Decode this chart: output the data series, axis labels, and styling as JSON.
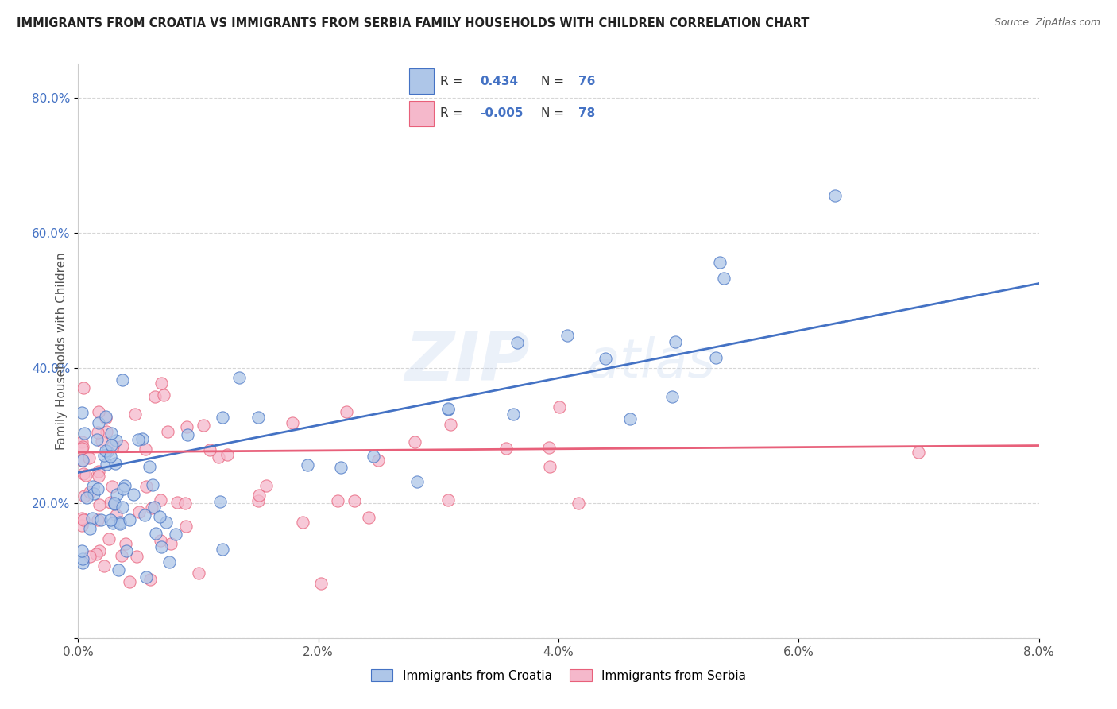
{
  "title": "IMMIGRANTS FROM CROATIA VS IMMIGRANTS FROM SERBIA FAMILY HOUSEHOLDS WITH CHILDREN CORRELATION CHART",
  "source": "Source: ZipAtlas.com",
  "ylabel": "Family Households with Children",
  "xlim": [
    0.0,
    0.08
  ],
  "ylim": [
    0.0,
    0.85
  ],
  "x_ticks": [
    0.0,
    0.02,
    0.04,
    0.06,
    0.08
  ],
  "x_tick_labels": [
    "0.0%",
    "2.0%",
    "4.0%",
    "6.0%",
    "8.0%"
  ],
  "y_ticks": [
    0.0,
    0.2,
    0.4,
    0.6,
    0.8
  ],
  "y_tick_labels": [
    "",
    "20.0%",
    "40.0%",
    "60.0%",
    "80.0%"
  ],
  "R_croatia": 0.434,
  "N_croatia": 76,
  "R_serbia": -0.005,
  "N_serbia": 78,
  "color_croatia": "#aec6e8",
  "color_serbia": "#f5b8cb",
  "line_color_croatia": "#4472c4",
  "line_color_serbia": "#e8607a",
  "legend_entries": [
    "Immigrants from Croatia",
    "Immigrants from Serbia"
  ],
  "croatia_line_x0": 0.0,
  "croatia_line_y0": 0.245,
  "croatia_line_x1": 0.08,
  "croatia_line_y1": 0.525,
  "serbia_line_x0": 0.0,
  "serbia_line_y0": 0.275,
  "serbia_line_x1": 0.08,
  "serbia_line_y1": 0.285
}
